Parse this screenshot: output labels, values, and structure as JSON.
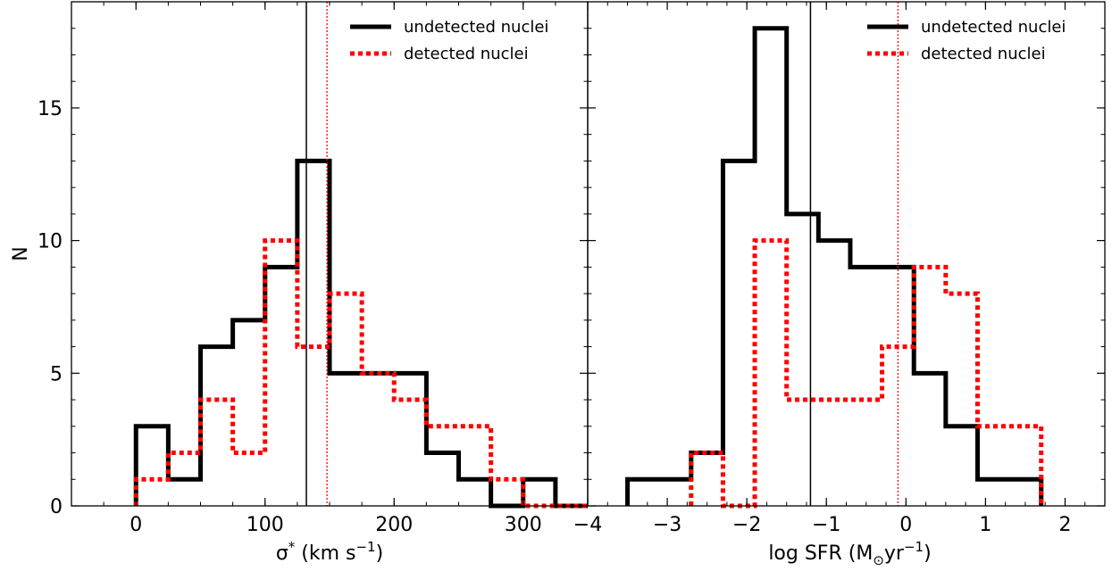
{
  "chart_data": [
    {
      "type": "histogram",
      "xlabel_base": "σ",
      "xlabel_sup": "*",
      "xlabel_mid": " (km s",
      "xlabel_sup2": "−1",
      "xlabel_end": ")",
      "ylabel": "N",
      "xlim": [
        -50,
        350
      ],
      "ylim": [
        0,
        19
      ],
      "xticks": [
        0,
        100,
        200,
        300
      ],
      "yticks": [
        0,
        5,
        10,
        15
      ],
      "legend_position": "top-right",
      "series": [
        {
          "name": "undetected nuclei",
          "color": "#000000",
          "style": "solid",
          "bin_edges": [
            0,
            25,
            50,
            75,
            100,
            125,
            150,
            175,
            200,
            225,
            250,
            275,
            300,
            325,
            350
          ],
          "counts": [
            3,
            1,
            6,
            7,
            9,
            13,
            5,
            5,
            5,
            2,
            1,
            0,
            1,
            0
          ],
          "median": 132
        },
        {
          "name": "detected nuclei",
          "color": "#ff0000",
          "style": "dotted",
          "bin_edges": [
            0,
            25,
            50,
            75,
            100,
            125,
            150,
            175,
            200,
            225,
            250,
            275,
            300,
            325,
            350
          ],
          "counts": [
            1,
            2,
            4,
            2,
            10,
            6,
            8,
            5,
            4,
            3,
            3,
            1,
            0,
            0
          ],
          "median": 148
        }
      ]
    },
    {
      "type": "histogram",
      "xlabel_base": "log SFR (M",
      "xlabel_sub": "⊙",
      "xlabel_mid": "yr",
      "xlabel_sup": "−1",
      "xlabel_end": ")",
      "xlim": [
        -4,
        2.5
      ],
      "ylim": [
        0,
        19
      ],
      "xticks": [
        -4,
        -3,
        -2,
        -1,
        0,
        1,
        2
      ],
      "yticks": [
        0,
        5,
        10,
        15
      ],
      "legend_position": "top-right",
      "series": [
        {
          "name": "undetected nuclei",
          "color": "#000000",
          "style": "solid",
          "bin_edges": [
            -3.5,
            -2.7,
            -2.3,
            -1.9,
            -1.5,
            -1.1,
            -0.7,
            0.1,
            0.5,
            0.9,
            1.7
          ],
          "counts": [
            1,
            2,
            13,
            18,
            11,
            10,
            9,
            5,
            3,
            1
          ],
          "median": -1.2
        },
        {
          "name": "detected nuclei",
          "color": "#ff0000",
          "style": "dotted",
          "bin_edges": [
            -2.7,
            -2.3,
            -1.9,
            -1.5,
            -1.1,
            -0.7,
            -0.3,
            0.1,
            0.5,
            0.9,
            1.7
          ],
          "counts": [
            2,
            0,
            10,
            4,
            4,
            4,
            6,
            9,
            8,
            3
          ],
          "median": -0.1
        }
      ]
    }
  ]
}
